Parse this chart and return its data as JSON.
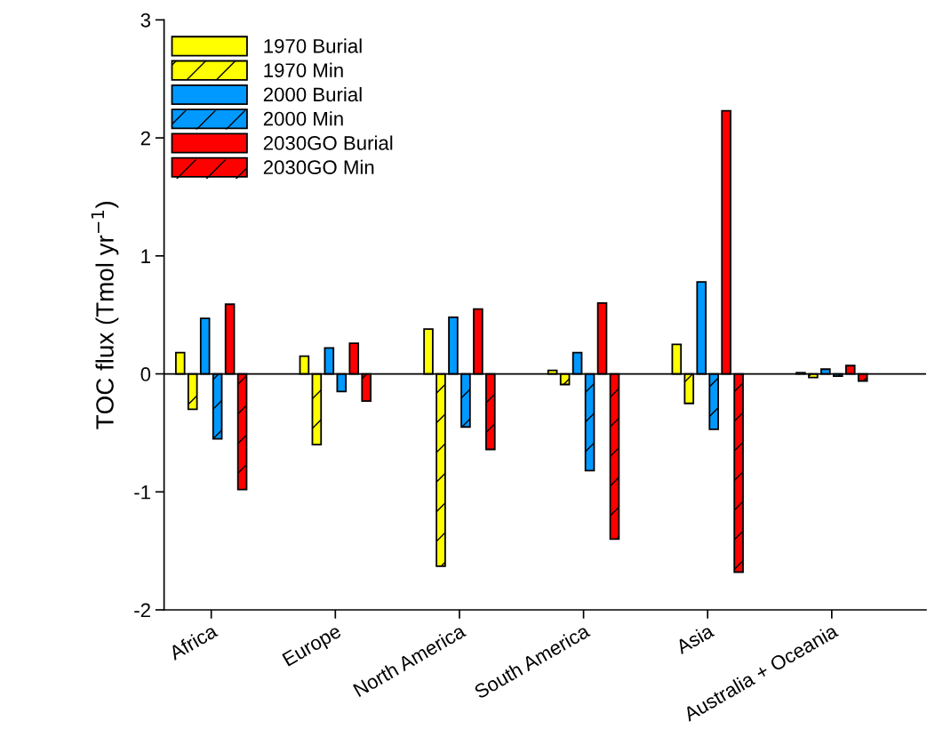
{
  "chart_data": {
    "type": "bar",
    "ylabel": "TOC flux (Tmol yr$^{−1}$)",
    "categories": [
      "Africa",
      "Europe",
      "North America",
      "South America",
      "Asia",
      "Australia + Oceania"
    ],
    "series": [
      {
        "name": "1970 Burial",
        "color": "#ffff00",
        "values": [
          0.18,
          0.15,
          0.38,
          0.03,
          0.25,
          0.01
        ]
      },
      {
        "name": "1970 Min",
        "color": "#ffff00",
        "values": [
          -0.3,
          -0.6,
          -1.63,
          -0.09,
          -0.25,
          -0.03
        ]
      },
      {
        "name": "2000 Burial",
        "color": "#0099ff",
        "values": [
          0.47,
          0.22,
          0.48,
          0.18,
          0.78,
          0.04
        ]
      },
      {
        "name": "2000 Min",
        "color": "#0099ff",
        "values": [
          -0.55,
          -0.15,
          -0.45,
          -0.82,
          -0.47,
          -0.02
        ]
      },
      {
        "name": "2030GO Burial",
        "color": "#ff0000",
        "values": [
          0.59,
          0.26,
          0.55,
          0.6,
          2.23,
          0.07
        ]
      },
      {
        "name": "2030GO Min",
        "color": "#ff0000",
        "values": [
          -0.98,
          -0.23,
          -0.64,
          -1.4,
          -1.68,
          -0.06
        ]
      }
    ],
    "ylim": [
      -2,
      3
    ],
    "yticks": [
      -2,
      -1,
      0,
      1,
      2,
      3
    ],
    "ref_lines": [
      {
        "axis": "y",
        "value": 0,
        "color": "#000000"
      }
    ],
    "grid": false,
    "legend": "top left"
  }
}
